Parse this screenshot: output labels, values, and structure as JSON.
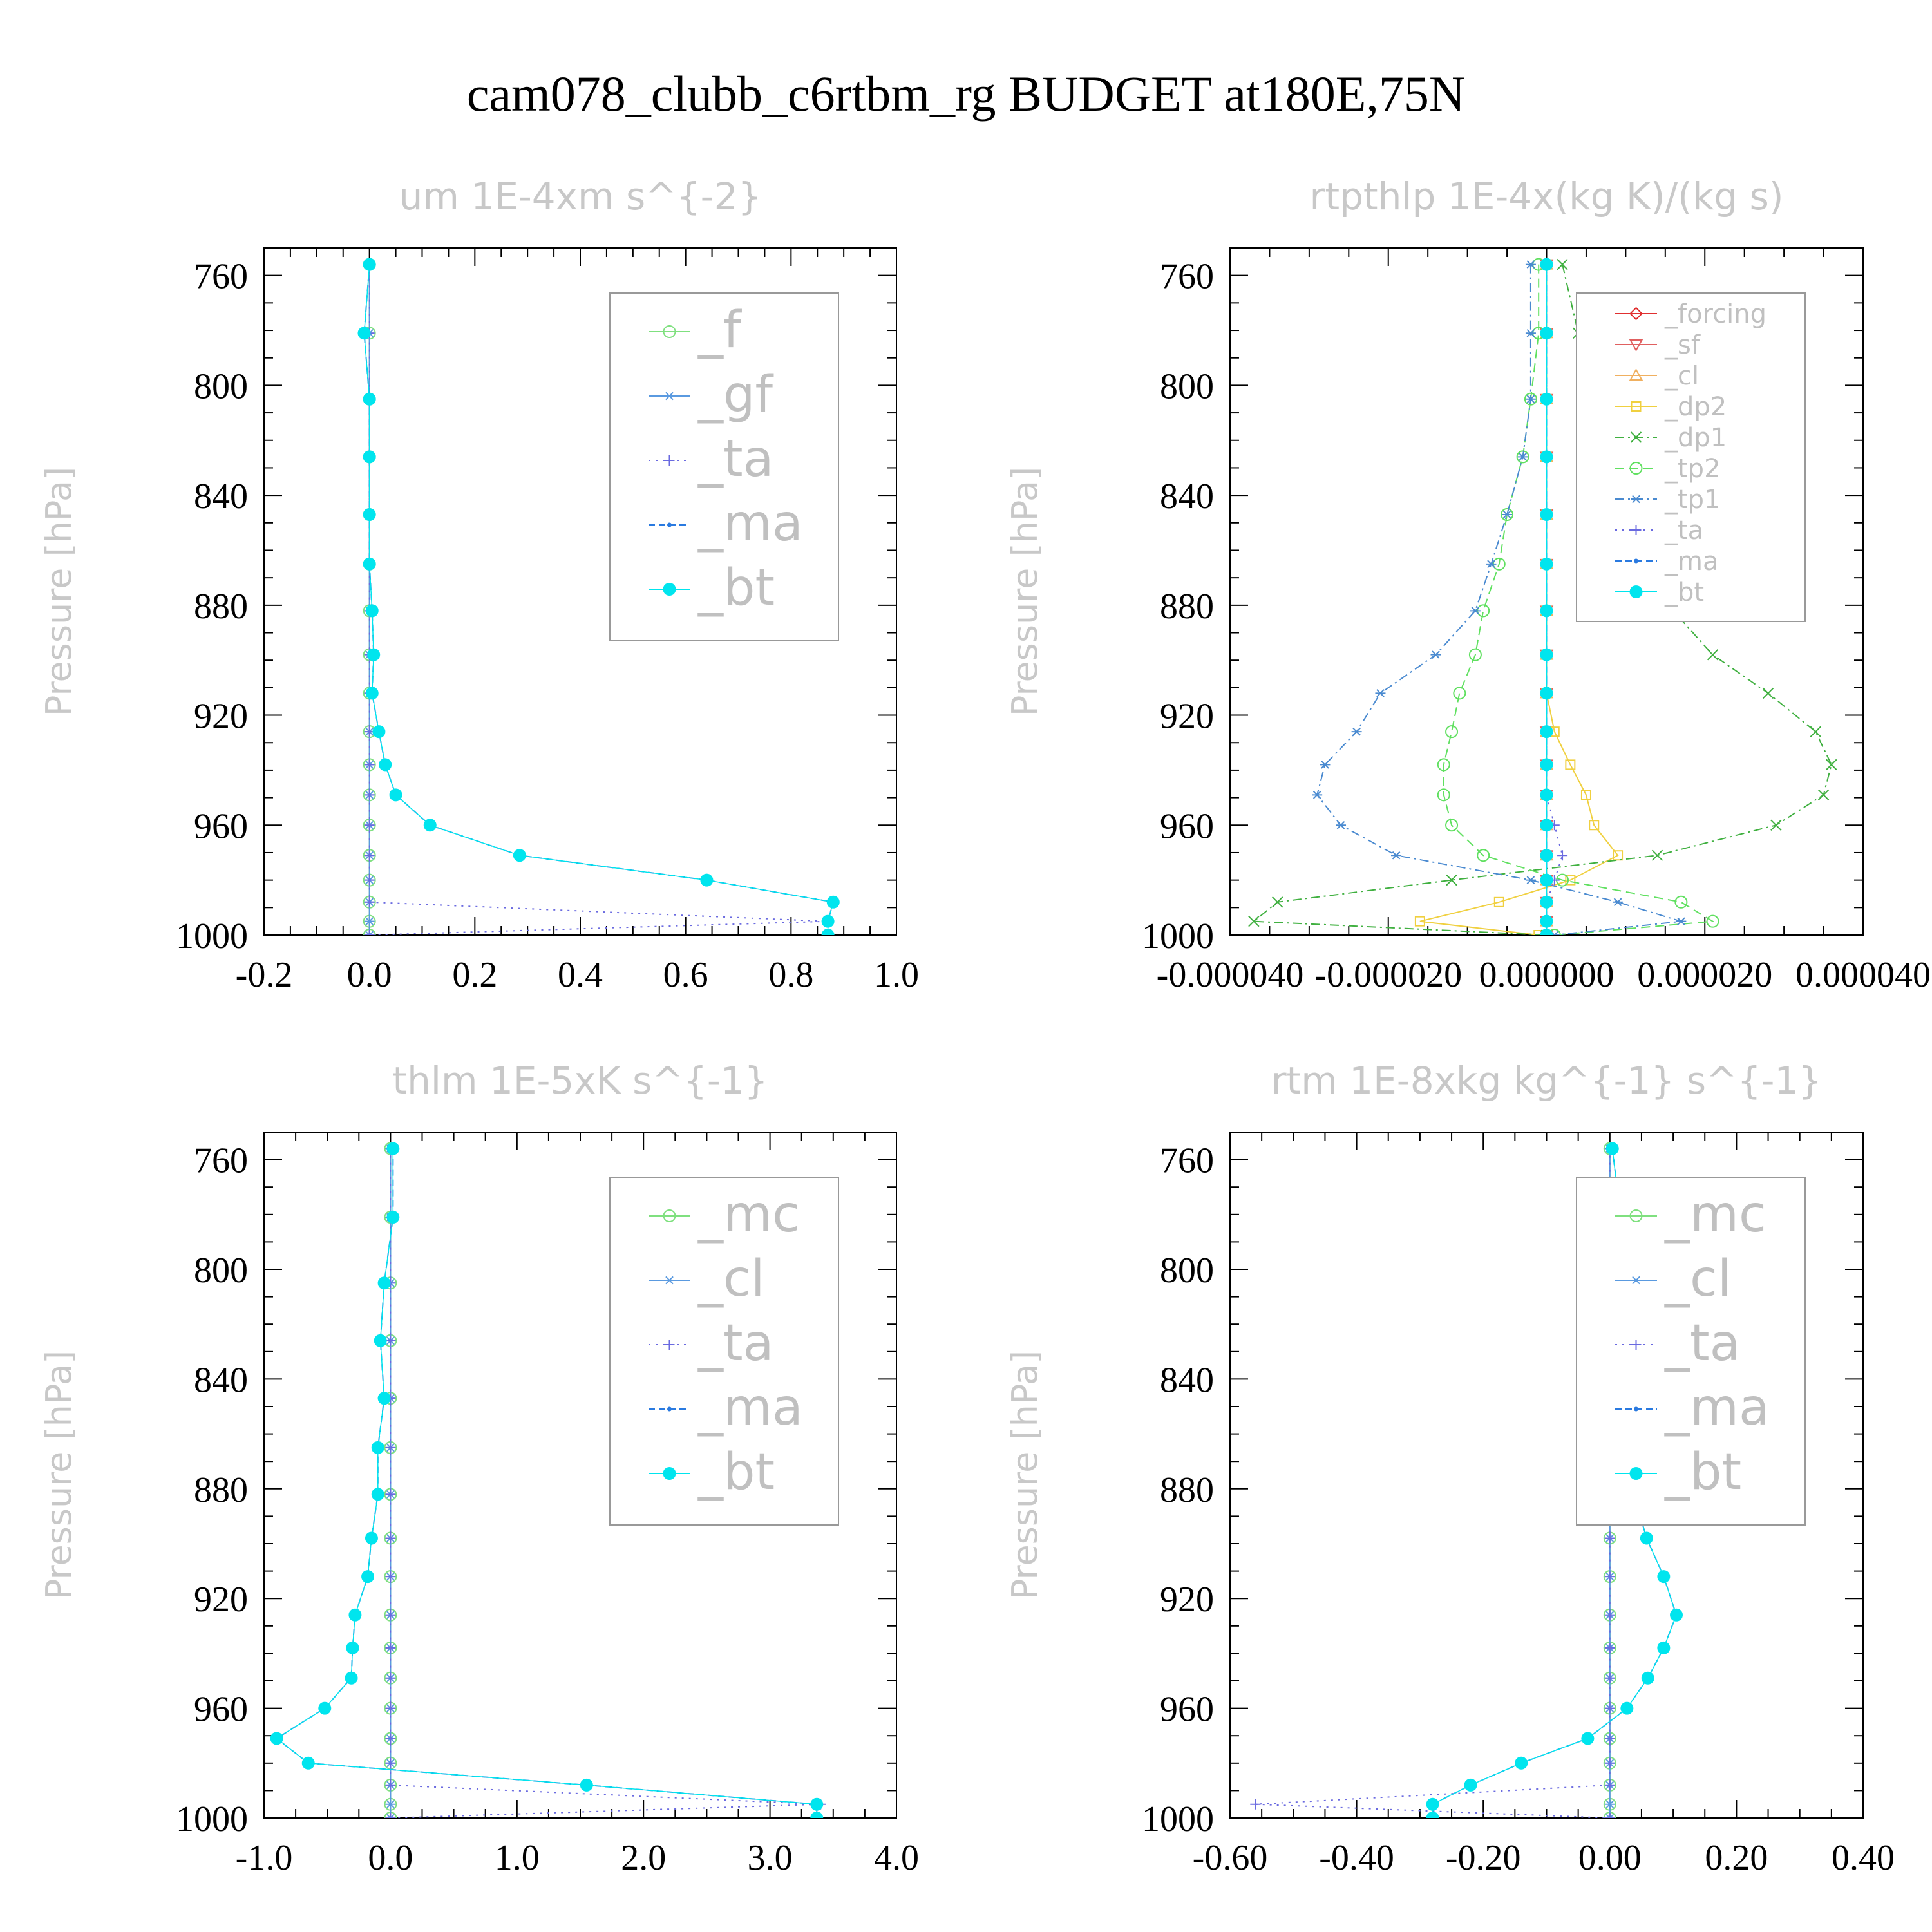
{
  "figure": {
    "title": "cam078_clubb_c6rtbm_rg  BUDGET at180E,75N"
  },
  "chart_data": [
    {
      "type": "line",
      "title": "um  1E-4xm s^{-2}",
      "ylabel": "Pressure [hPa]",
      "xlim": [
        -0.2,
        1.0
      ],
      "ylim": [
        750,
        1000
      ],
      "y_inverted": true,
      "xticks": [
        "-0.2",
        "0.0",
        "0.2",
        "0.4",
        "0.6",
        "0.8",
        "1.0"
      ],
      "yticks": [
        "760",
        "800",
        "840",
        "880",
        "920",
        "960",
        "1000"
      ],
      "legend_position": "top-right",
      "legend_size": "large",
      "y": [
        756,
        781,
        805,
        826,
        847,
        865,
        882,
        898,
        912,
        926,
        938,
        949,
        960,
        971,
        980,
        988,
        995,
        1000
      ],
      "series": [
        {
          "name": "_f",
          "color": "#7fe07f",
          "marker": "circle",
          "dash": "",
          "x": [
            0,
            0,
            0,
            0,
            0,
            0,
            0,
            0,
            0,
            0,
            0,
            0,
            0,
            0,
            0,
            0,
            0,
            0
          ]
        },
        {
          "name": "_gf",
          "color": "#5a9ae0",
          "marker": "asterisk",
          "dash": "",
          "x": [
            0,
            0,
            0,
            0,
            0,
            0,
            0,
            0,
            0,
            0,
            0,
            0,
            0,
            0,
            0,
            0,
            0,
            0
          ]
        },
        {
          "name": "_ta",
          "color": "#6a6ae0",
          "marker": "plus",
          "dash": "3,8",
          "x": [
            0,
            0,
            0,
            0,
            0,
            0,
            0,
            0,
            0,
            0,
            0,
            0,
            0,
            0,
            0,
            0,
            0.87,
            0
          ]
        },
        {
          "name": "_ma",
          "color": "#2a7ae0",
          "marker": "dot",
          "dash": "10,6",
          "x": [
            0,
            -0.01,
            0,
            0,
            0,
            0,
            0.005,
            0.008,
            0.005,
            0.018,
            0.03,
            0.05,
            0.115,
            0.285,
            0.64,
            0.88,
            0.87,
            0.87
          ]
        },
        {
          "name": "_bt",
          "color": "#00e5ee",
          "marker": "bigdot",
          "dash": "",
          "x": [
            0,
            -0.01,
            0,
            0,
            0,
            0,
            0.005,
            0.008,
            0.005,
            0.018,
            0.03,
            0.05,
            0.115,
            0.285,
            0.64,
            0.88,
            0.87,
            0.87
          ]
        }
      ]
    },
    {
      "type": "line",
      "title": "rtpthlp  1E-4x(kg K)/(kg s)",
      "ylabel": "Pressure [hPa]",
      "xlim": [
        -4e-05,
        4e-05
      ],
      "ylim": [
        750,
        1000
      ],
      "y_inverted": true,
      "xticks": [
        "-0.000040",
        "-0.000020",
        "0.000000",
        "0.000020",
        "0.000040"
      ],
      "yticks": [
        "760",
        "800",
        "840",
        "880",
        "920",
        "960",
        "1000"
      ],
      "legend_position": "top-right",
      "legend_size": "small",
      "y": [
        756,
        781,
        805,
        826,
        847,
        865,
        882,
        898,
        912,
        926,
        938,
        949,
        960,
        971,
        980,
        988,
        995,
        1000
      ],
      "series": [
        {
          "name": "_forcing",
          "color": "#e03030",
          "marker": "diamond",
          "dash": "",
          "x": [
            0,
            0,
            0,
            0,
            0,
            0,
            0,
            0,
            0,
            0,
            0,
            0,
            0,
            0,
            0,
            0,
            0,
            0
          ]
        },
        {
          "name": "_sf",
          "color": "#e06060",
          "marker": "tri-down",
          "dash": "",
          "x": [
            0,
            0,
            0,
            0,
            0,
            0,
            0,
            0,
            0,
            0,
            0,
            0,
            0,
            0,
            0,
            0,
            0,
            0
          ]
        },
        {
          "name": "_cl",
          "color": "#f0b060",
          "marker": "tri-up",
          "dash": "",
          "x": [
            0,
            0,
            0,
            0,
            0,
            0,
            0,
            0,
            0,
            0,
            0,
            0,
            0,
            0,
            0,
            0,
            0,
            0
          ]
        },
        {
          "name": "_dp2",
          "color": "#f0d040",
          "marker": "square",
          "dash": "",
          "x": [
            0,
            0,
            0,
            0,
            0,
            0,
            0,
            0,
            0,
            1e-06,
            3e-06,
            5e-06,
            6e-06,
            9e-06,
            3e-06,
            -6e-06,
            -1.6e-05,
            -1e-06
          ]
        },
        {
          "name": "_dp1",
          "color": "#40b040",
          "marker": "x",
          "dash": "14,6,3,6",
          "x": [
            2e-06,
            4e-06,
            6e-06,
            9e-06,
            1.1e-05,
            1.3e-05,
            1.6e-05,
            2.1e-05,
            2.8e-05,
            3.4e-05,
            3.6e-05,
            3.5e-05,
            2.9e-05,
            1.4e-05,
            -1.2e-05,
            -3.4e-05,
            -3.7e-05,
            0
          ]
        },
        {
          "name": "_tp2",
          "color": "#60e060",
          "marker": "circle",
          "dash": "14,8",
          "x": [
            -1e-06,
            -1e-06,
            -2e-06,
            -3e-06,
            -5e-06,
            -6e-06,
            -8e-06,
            -9e-06,
            -1.1e-05,
            -1.2e-05,
            -1.3e-05,
            -1.3e-05,
            -1.2e-05,
            -8e-06,
            2e-06,
            1.7e-05,
            2.1e-05,
            1e-06
          ]
        },
        {
          "name": "_tp1",
          "color": "#4a8ad0",
          "marker": "asterisk",
          "dash": "14,6,3,6",
          "x": [
            -2e-06,
            -2e-06,
            -2e-06,
            -3e-06,
            -5e-06,
            -7e-06,
            -9e-06,
            -1.4e-05,
            -2.1e-05,
            -2.4e-05,
            -2.8e-05,
            -2.9e-05,
            -2.6e-05,
            -1.9e-05,
            -2e-06,
            9e-06,
            1.7e-05,
            1e-06
          ]
        },
        {
          "name": "_ta",
          "color": "#6a6ae0",
          "marker": "plus",
          "dash": "3,8",
          "x": [
            0,
            0,
            0,
            0,
            0,
            0,
            0,
            0,
            0,
            0,
            0,
            0,
            1e-06,
            2e-06,
            1e-06,
            0,
            0,
            0
          ]
        },
        {
          "name": "_ma",
          "color": "#2a7ae0",
          "marker": "dot",
          "dash": "10,6",
          "x": [
            0,
            0,
            0,
            0,
            0,
            0,
            0,
            0,
            0,
            0,
            0,
            0,
            0,
            0,
            0,
            0,
            0,
            0
          ]
        },
        {
          "name": "_bt",
          "color": "#00e5ee",
          "marker": "bigdot",
          "dash": "",
          "x": [
            0,
            0,
            0,
            0,
            0,
            0,
            0,
            0,
            0,
            0,
            0,
            0,
            0,
            0,
            0,
            0,
            0,
            0
          ]
        }
      ]
    },
    {
      "type": "line",
      "title": "thlm  1E-5xK s^{-1}",
      "ylabel": "Pressure [hPa]",
      "xlim": [
        -1.0,
        4.0
      ],
      "ylim": [
        750,
        1000
      ],
      "y_inverted": true,
      "xticks": [
        "-1.0",
        "0.0",
        "1.0",
        "2.0",
        "3.0",
        "4.0"
      ],
      "yticks": [
        "760",
        "800",
        "840",
        "880",
        "920",
        "960",
        "1000"
      ],
      "legend_position": "top-right",
      "legend_size": "large",
      "y": [
        756,
        781,
        805,
        826,
        847,
        865,
        882,
        898,
        912,
        926,
        938,
        949,
        960,
        971,
        980,
        988,
        995,
        1000
      ],
      "series": [
        {
          "name": "_mc",
          "color": "#7fe07f",
          "marker": "circle",
          "dash": "",
          "x": [
            0,
            0,
            0,
            0,
            0,
            0,
            0,
            0,
            0,
            0,
            0,
            0,
            0,
            0,
            0,
            0,
            0,
            0
          ]
        },
        {
          "name": "_cl",
          "color": "#5a9ae0",
          "marker": "asterisk",
          "dash": "",
          "x": [
            0,
            0,
            0,
            0,
            0,
            0,
            0,
            0,
            0,
            0,
            0,
            0,
            0,
            0,
            0,
            0,
            0,
            0
          ]
        },
        {
          "name": "_ta",
          "color": "#6a6ae0",
          "marker": "plus",
          "dash": "3,8",
          "x": [
            0,
            0,
            0,
            0,
            0,
            0,
            0,
            0,
            0,
            0,
            0,
            0,
            0,
            0,
            0,
            0,
            3.4,
            0
          ]
        },
        {
          "name": "_ma",
          "color": "#2a7ae0",
          "marker": "dot",
          "dash": "10,6",
          "x": [
            0.02,
            0.02,
            -0.05,
            -0.08,
            -0.05,
            -0.1,
            -0.1,
            -0.15,
            -0.18,
            -0.28,
            -0.3,
            -0.31,
            -0.52,
            -0.9,
            -0.65,
            1.55,
            3.37,
            3.37
          ]
        },
        {
          "name": "_bt",
          "color": "#00e5ee",
          "marker": "bigdot",
          "dash": "",
          "x": [
            0.02,
            0.02,
            -0.05,
            -0.08,
            -0.05,
            -0.1,
            -0.1,
            -0.15,
            -0.18,
            -0.28,
            -0.3,
            -0.31,
            -0.52,
            -0.9,
            -0.65,
            1.55,
            3.37,
            3.37
          ]
        }
      ]
    },
    {
      "type": "line",
      "title": "rtm  1E-8xkg kg^{-1} s^{-1}",
      "ylabel": "Pressure [hPa]",
      "xlim": [
        -0.6,
        0.4
      ],
      "ylim": [
        750,
        1000
      ],
      "y_inverted": true,
      "xticks": [
        "-0.60",
        "-0.40",
        "-0.20",
        "0.00",
        "0.20",
        "0.40"
      ],
      "yticks": [
        "760",
        "800",
        "840",
        "880",
        "920",
        "960",
        "1000"
      ],
      "legend_position": "top-right",
      "legend_size": "large",
      "y": [
        756,
        781,
        805,
        826,
        847,
        865,
        873,
        882,
        898,
        912,
        926,
        938,
        949,
        960,
        971,
        980,
        988,
        995,
        1000
      ],
      "series": [
        {
          "name": "_mc",
          "color": "#7fe07f",
          "marker": "circle",
          "dash": "",
          "x": [
            0,
            0,
            0,
            0,
            0,
            0,
            0,
            0,
            0,
            0,
            0,
            0,
            0,
            0,
            0,
            0,
            0,
            0,
            0
          ]
        },
        {
          "name": "_cl",
          "color": "#5a9ae0",
          "marker": "asterisk",
          "dash": "",
          "x": [
            0,
            0,
            0,
            0,
            0,
            0,
            0,
            0,
            0,
            0,
            0,
            0,
            0,
            0,
            0,
            0,
            0,
            0,
            0
          ]
        },
        {
          "name": "_ta",
          "color": "#6a6ae0",
          "marker": "plus",
          "dash": "3,8",
          "x": [
            0,
            0,
            0,
            0,
            0,
            0,
            0,
            0,
            0,
            0,
            0,
            0,
            0,
            0,
            0,
            0,
            0,
            -0.56,
            0
          ]
        },
        {
          "name": "_ma",
          "color": "#2a7ae0",
          "marker": "dot",
          "dash": "10,6",
          "x": [
            0.004,
            0.017,
            0.015,
            0.017,
            0.04,
            0.032,
            0.033,
            0.038,
            0.058,
            0.085,
            0.105,
            0.085,
            0.06,
            0.027,
            -0.035,
            -0.14,
            -0.22,
            -0.28,
            -0.28
          ]
        },
        {
          "name": "_bt",
          "color": "#00e5ee",
          "marker": "bigdot",
          "dash": "",
          "x": [
            0.004,
            0.017,
            0.015,
            0.017,
            0.04,
            0.032,
            0.033,
            0.038,
            0.058,
            0.085,
            0.105,
            0.085,
            0.06,
            0.027,
            -0.035,
            -0.14,
            -0.22,
            -0.28,
            -0.28
          ]
        }
      ]
    }
  ]
}
